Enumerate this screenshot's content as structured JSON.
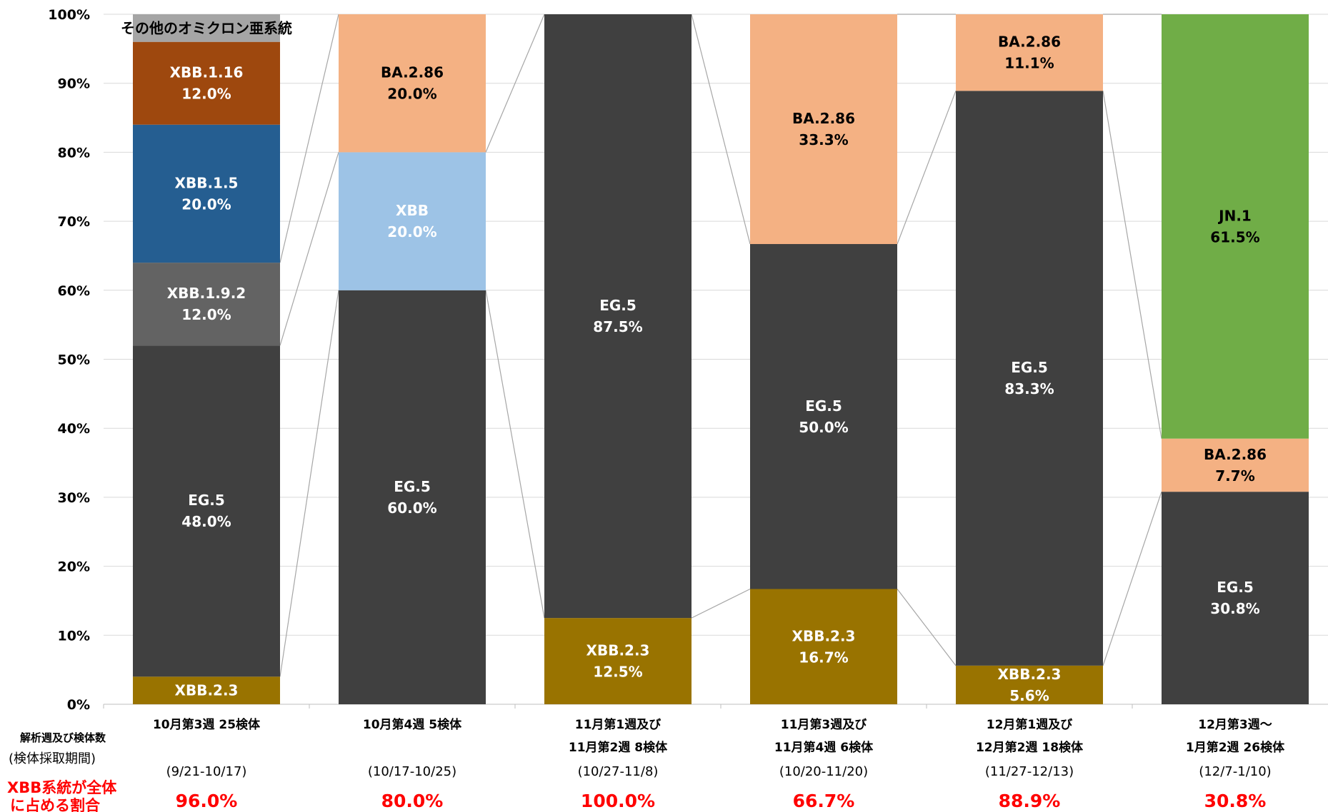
{
  "chart_data": {
    "type": "bar",
    "stacked": true,
    "ylim": [
      0,
      100
    ],
    "yticks": [
      "0%",
      "10%",
      "20%",
      "30%",
      "40%",
      "50%",
      "60%",
      "70%",
      "80%",
      "90%",
      "100%"
    ],
    "grid": true,
    "row_labels": {
      "header": "解析週及び検体数",
      "period_header": "(検体採取期間)",
      "xbb_share_header": [
        "XBB系統が全体",
        "に占める割合"
      ]
    },
    "categories": [
      {
        "label": [
          "10月第3週 25検体"
        ],
        "period": "(9/21-10/17)",
        "xbb_share": "96.0%",
        "segments": [
          {
            "name": "XBB.2.3",
            "value": 4.0,
            "labels": [
              "XBB.2.3"
            ],
            "color": "#997300",
            "text_color": "#ffffff"
          },
          {
            "name": "EG.5",
            "value": 48.0,
            "labels": [
              "EG.5",
              "48.0%"
            ],
            "color": "#404040",
            "text_color": "#ffffff"
          },
          {
            "name": "XBB.1.9.2",
            "value": 12.0,
            "labels": [
              "XBB.1.9.2",
              "12.0%"
            ],
            "color": "#636363",
            "text_color": "#ffffff"
          },
          {
            "name": "XBB.1.5",
            "value": 20.0,
            "labels": [
              "XBB.1.5",
              "20.0%"
            ],
            "color": "#255e91",
            "text_color": "#ffffff"
          },
          {
            "name": "XBB.1.16",
            "value": 12.0,
            "labels": [
              "XBB.1.16",
              "12.0%"
            ],
            "color": "#9e480e",
            "text_color": "#ffffff"
          },
          {
            "name": "その他のオミクロン亜系統",
            "value": 4.0,
            "labels": [
              "その他のオミクロン亜系統"
            ],
            "color": "#a5a5a5",
            "text_color": "#000000"
          }
        ]
      },
      {
        "label": [
          "10月第4週 5検体"
        ],
        "period": "(10/17-10/25)",
        "xbb_share": "80.0%",
        "segments": [
          {
            "name": "EG.5",
            "value": 60.0,
            "labels": [
              "EG.5",
              "60.0%"
            ],
            "color": "#404040",
            "text_color": "#ffffff"
          },
          {
            "name": "XBB",
            "value": 20.0,
            "labels": [
              "XBB",
              "20.0%"
            ],
            "color": "#9dc3e6",
            "text_color": "#ffffff"
          },
          {
            "name": "BA.2.86",
            "value": 20.0,
            "labels": [
              "BA.2.86",
              "20.0%"
            ],
            "color": "#f4b183",
            "text_color": "#000000"
          }
        ]
      },
      {
        "label": [
          "11月第1週及び",
          "11月第2週 8検体"
        ],
        "period": "(10/27-11/8)",
        "xbb_share": "100.0%",
        "segments": [
          {
            "name": "XBB.2.3",
            "value": 12.5,
            "labels": [
              "XBB.2.3",
              "12.5%"
            ],
            "color": "#997300",
            "text_color": "#ffffff"
          },
          {
            "name": "EG.5",
            "value": 87.5,
            "labels": [
              "EG.5",
              "87.5%"
            ],
            "color": "#404040",
            "text_color": "#ffffff"
          }
        ]
      },
      {
        "label": [
          "11月第3週及び",
          "11月第4週 6検体"
        ],
        "period": "(10/20-11/20)",
        "xbb_share": "66.7%",
        "segments": [
          {
            "name": "XBB.2.3",
            "value": 16.7,
            "labels": [
              "XBB.2.3",
              "16.7%"
            ],
            "color": "#997300",
            "text_color": "#ffffff"
          },
          {
            "name": "EG.5",
            "value": 50.0,
            "labels": [
              "EG.5",
              "50.0%"
            ],
            "color": "#404040",
            "text_color": "#ffffff"
          },
          {
            "name": "BA.2.86",
            "value": 33.3,
            "labels": [
              "BA.2.86",
              "33.3%"
            ],
            "color": "#f4b183",
            "text_color": "#000000"
          }
        ]
      },
      {
        "label": [
          "12月第1週及び",
          "12月第2週 18検体"
        ],
        "period": "(11/27-12/13)",
        "xbb_share": "88.9%",
        "segments": [
          {
            "name": "XBB.2.3",
            "value": 5.6,
            "labels": [
              "XBB.2.3",
              "5.6%"
            ],
            "color": "#997300",
            "text_color": "#ffffff"
          },
          {
            "name": "EG.5",
            "value": 83.3,
            "labels": [
              "EG.5",
              "83.3%"
            ],
            "color": "#404040",
            "text_color": "#ffffff"
          },
          {
            "name": "BA.2.86",
            "value": 11.1,
            "labels": [
              "BA.2.86",
              "11.1%"
            ],
            "color": "#f4b183",
            "text_color": "#000000"
          }
        ]
      },
      {
        "label": [
          "12月第3週～",
          "1月第2週 26検体"
        ],
        "period": "(12/7-1/10)",
        "xbb_share": "30.8%",
        "segments": [
          {
            "name": "EG.5",
            "value": 30.8,
            "labels": [
              "EG.5",
              "30.8%"
            ],
            "color": "#404040",
            "text_color": "#ffffff"
          },
          {
            "name": "BA.2.86",
            "value": 7.7,
            "labels": [
              "BA.2.86",
              "7.7%"
            ],
            "color": "#f4b183",
            "text_color": "#000000"
          },
          {
            "name": "JN.1",
            "value": 61.5,
            "labels": [
              "JN.1",
              "61.5%"
            ],
            "color": "#70ad47",
            "text_color": "#000000"
          }
        ]
      }
    ]
  }
}
